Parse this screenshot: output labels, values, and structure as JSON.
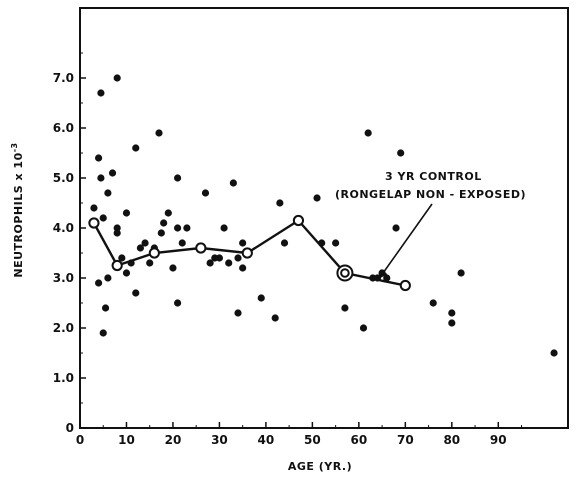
{
  "chart_data": {
    "type": "scatter",
    "xlabel": "AGE (YR.)",
    "ylabel_main": "NEUTROPHILS x 10",
    "ylabel_exp": "-3",
    "xlim": [
      0,
      105
    ],
    "ylim": [
      0,
      8.4
    ],
    "x_ticks": [
      0,
      10,
      20,
      30,
      40,
      50,
      60,
      70,
      80,
      90
    ],
    "y_ticks": [
      "0",
      "1.0",
      "2.0",
      "3.0",
      "4.0",
      "5.0",
      "6.0",
      "7.0"
    ],
    "y_tick_values": [
      0,
      1,
      2,
      3,
      4,
      5,
      6,
      7
    ],
    "grid": false,
    "annotation": {
      "line1": "3 YR CONTROL",
      "line2": "(RONGELAP NON - EXPOSED)",
      "arrow_target": {
        "x": 63,
        "y": 2.9
      }
    },
    "series": [
      {
        "type": "scatter",
        "points": [
          {
            "x": 3,
            "y": 4.4
          },
          {
            "x": 4,
            "y": 2.9
          },
          {
            "x": 4,
            "y": 5.4
          },
          {
            "x": 4.5,
            "y": 5.0
          },
          {
            "x": 4.5,
            "y": 6.7
          },
          {
            "x": 5,
            "y": 4.2
          },
          {
            "x": 5,
            "y": 1.9
          },
          {
            "x": 5.5,
            "y": 2.4
          },
          {
            "x": 6,
            "y": 3.0
          },
          {
            "x": 6,
            "y": 4.7
          },
          {
            "x": 7,
            "y": 5.1
          },
          {
            "x": 8,
            "y": 7.0
          },
          {
            "x": 8,
            "y": 4.0
          },
          {
            "x": 8,
            "y": 3.9
          },
          {
            "x": 9,
            "y": 3.4
          },
          {
            "x": 10,
            "y": 3.1
          },
          {
            "x": 10,
            "y": 4.3
          },
          {
            "x": 11,
            "y": 3.3
          },
          {
            "x": 12,
            "y": 5.6
          },
          {
            "x": 12,
            "y": 2.7
          },
          {
            "x": 13,
            "y": 3.6
          },
          {
            "x": 14,
            "y": 3.7
          },
          {
            "x": 15,
            "y": 3.3
          },
          {
            "x": 16,
            "y": 3.6
          },
          {
            "x": 17,
            "y": 5.9
          },
          {
            "x": 17.5,
            "y": 3.9
          },
          {
            "x": 18,
            "y": 4.1
          },
          {
            "x": 19,
            "y": 4.3
          },
          {
            "x": 20,
            "y": 3.2
          },
          {
            "x": 21,
            "y": 4.0
          },
          {
            "x": 21,
            "y": 5.0
          },
          {
            "x": 21,
            "y": 2.5
          },
          {
            "x": 22,
            "y": 3.7
          },
          {
            "x": 23,
            "y": 4.0
          },
          {
            "x": 27,
            "y": 4.7
          },
          {
            "x": 28,
            "y": 3.3
          },
          {
            "x": 29,
            "y": 3.4
          },
          {
            "x": 30,
            "y": 3.4
          },
          {
            "x": 31,
            "y": 4.0
          },
          {
            "x": 32,
            "y": 3.3
          },
          {
            "x": 33,
            "y": 4.9
          },
          {
            "x": 34,
            "y": 3.4
          },
          {
            "x": 34,
            "y": 2.3
          },
          {
            "x": 35,
            "y": 3.2
          },
          {
            "x": 35,
            "y": 3.7
          },
          {
            "x": 39,
            "y": 2.6
          },
          {
            "x": 42,
            "y": 2.2
          },
          {
            "x": 43,
            "y": 4.5
          },
          {
            "x": 44,
            "y": 3.7
          },
          {
            "x": 51,
            "y": 4.6
          },
          {
            "x": 52,
            "y": 3.7
          },
          {
            "x": 55,
            "y": 3.7
          },
          {
            "x": 57,
            "y": 2.4
          },
          {
            "x": 61,
            "y": 2.0
          },
          {
            "x": 62,
            "y": 5.9
          },
          {
            "x": 63,
            "y": 3.0
          },
          {
            "x": 64,
            "y": 3.0
          },
          {
            "x": 65,
            "y": 3.1
          },
          {
            "x": 66,
            "y": 3.0
          },
          {
            "x": 68,
            "y": 4.0
          },
          {
            "x": 69,
            "y": 5.5
          },
          {
            "x": 76,
            "y": 2.5
          },
          {
            "x": 80,
            "y": 2.3
          },
          {
            "x": 80,
            "y": 2.1
          },
          {
            "x": 82,
            "y": 3.1
          },
          {
            "x": 102,
            "y": 1.5
          }
        ]
      },
      {
        "type": "line",
        "points": [
          {
            "x": 3,
            "y": 4.1
          },
          {
            "x": 8,
            "y": 3.25
          },
          {
            "x": 16,
            "y": 3.5
          },
          {
            "x": 26,
            "y": 3.6
          },
          {
            "x": 36,
            "y": 3.5
          },
          {
            "x": 47,
            "y": 4.15
          },
          {
            "x": 57,
            "y": 3.1
          },
          {
            "x": 70,
            "y": 2.85
          }
        ],
        "highlight_index": 6
      }
    ]
  }
}
